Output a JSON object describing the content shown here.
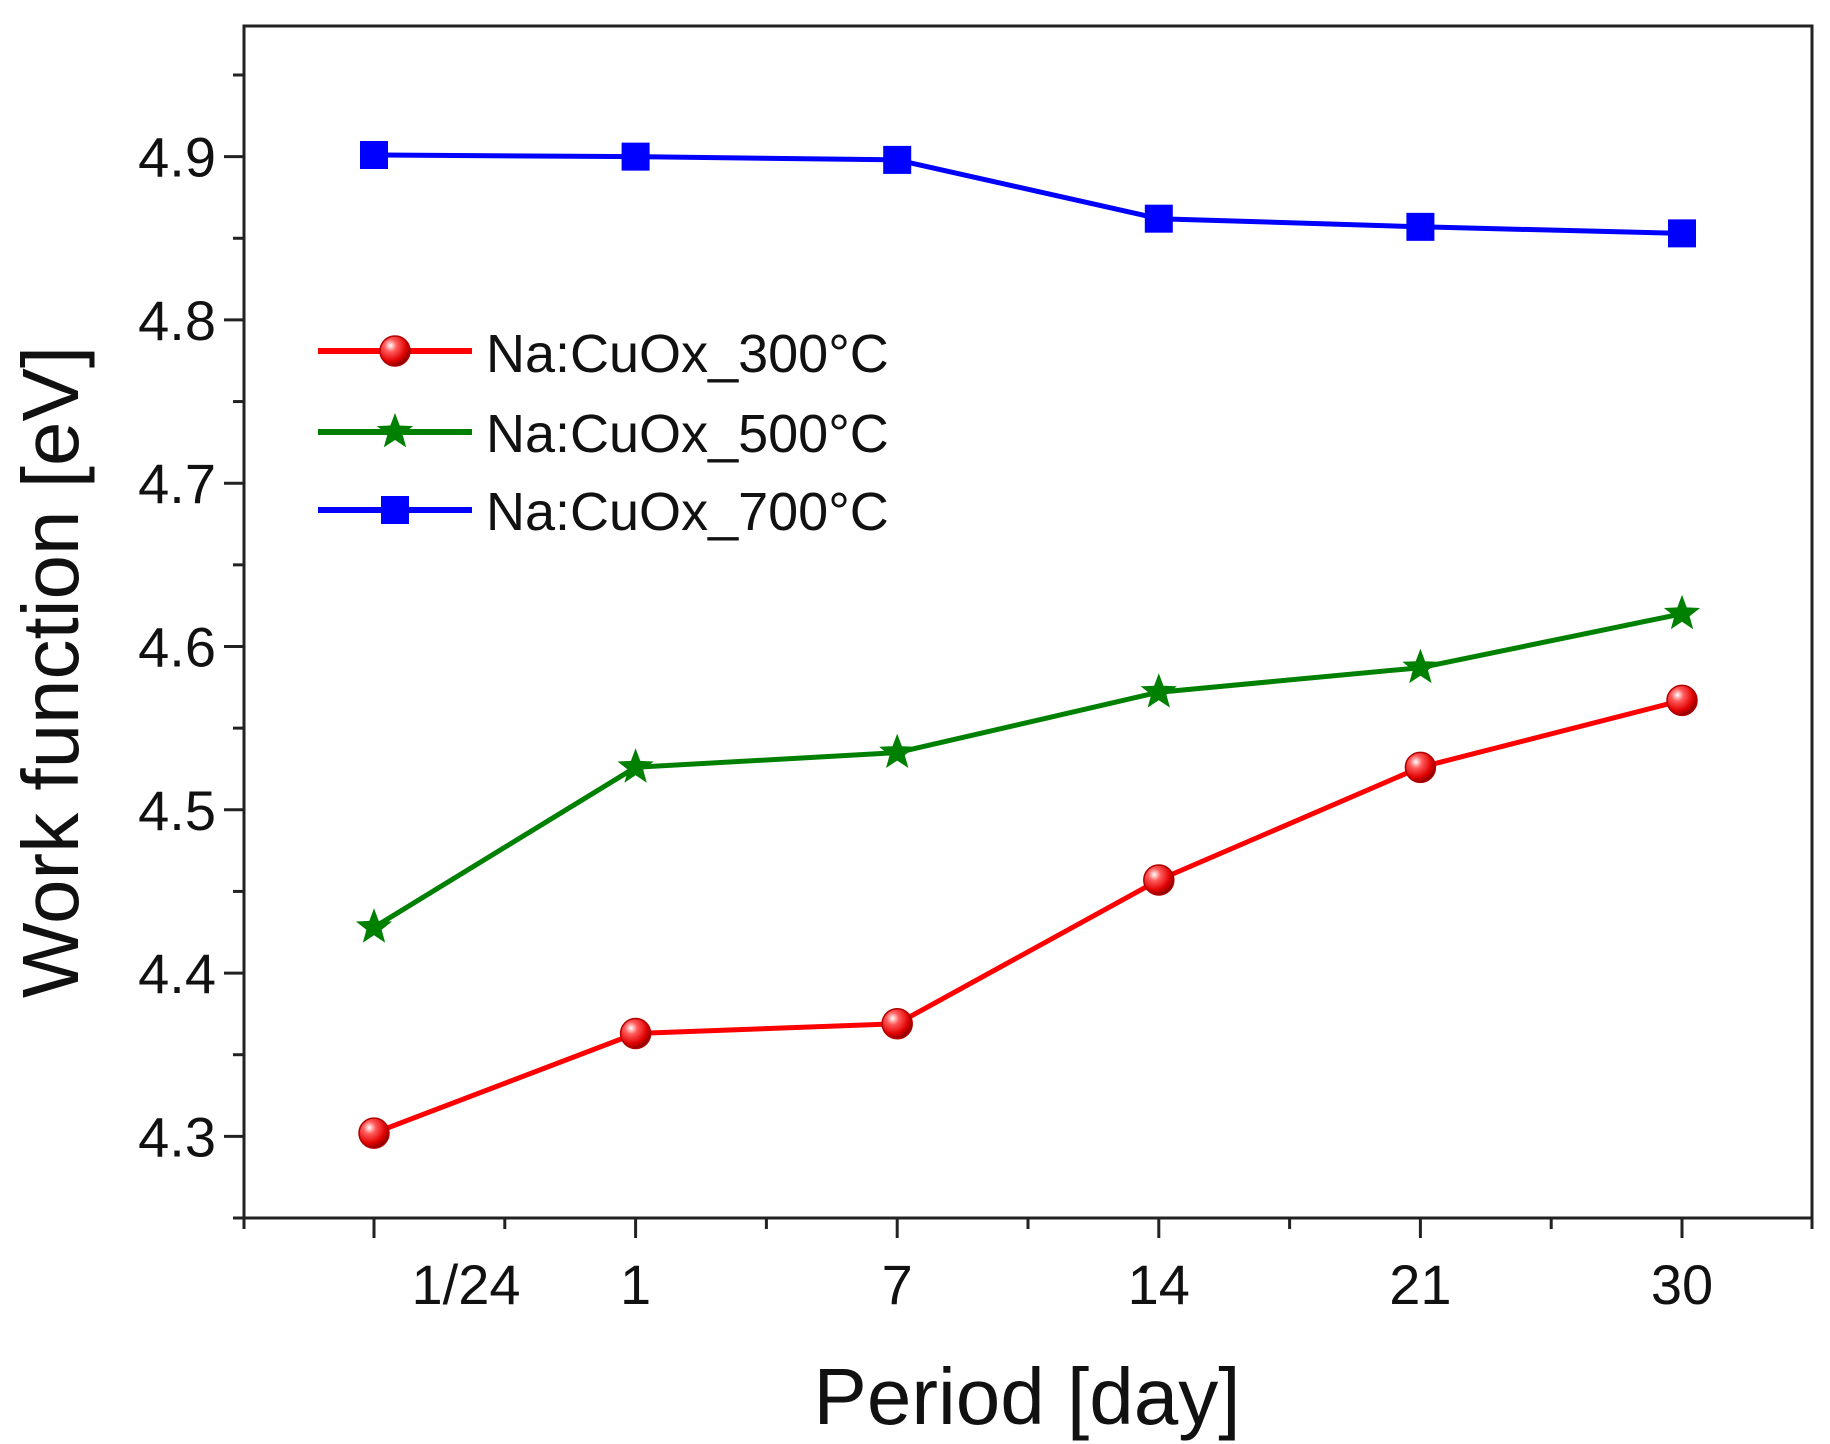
{
  "chart_data": {
    "type": "line",
    "title": "",
    "xlabel": "Period [day]",
    "ylabel": "Work function [eV]",
    "categories": [
      "1/24",
      "1",
      "7",
      "14",
      "21",
      "30"
    ],
    "ylim": [
      4.25,
      4.98
    ],
    "yticks": [
      "4.3",
      "4.4",
      "4.5",
      "4.6",
      "4.7",
      "4.8",
      "4.9"
    ],
    "grid": false,
    "legend_position": "upper-left",
    "series": [
      {
        "name": "Na:CuOx_300°C",
        "color": "#ff0000",
        "marker": "sphere",
        "values": [
          4.302,
          4.363,
          4.369,
          4.457,
          4.526,
          4.567
        ]
      },
      {
        "name": "Na:CuOx_500°C",
        "color": "#008000",
        "marker": "star",
        "values": [
          4.428,
          4.526,
          4.535,
          4.572,
          4.587,
          4.62
        ]
      },
      {
        "name": "Na:CuOx_700°C",
        "color": "#0000ff",
        "marker": "square",
        "values": [
          4.901,
          4.9,
          4.898,
          4.862,
          4.857,
          4.853
        ]
      }
    ]
  }
}
